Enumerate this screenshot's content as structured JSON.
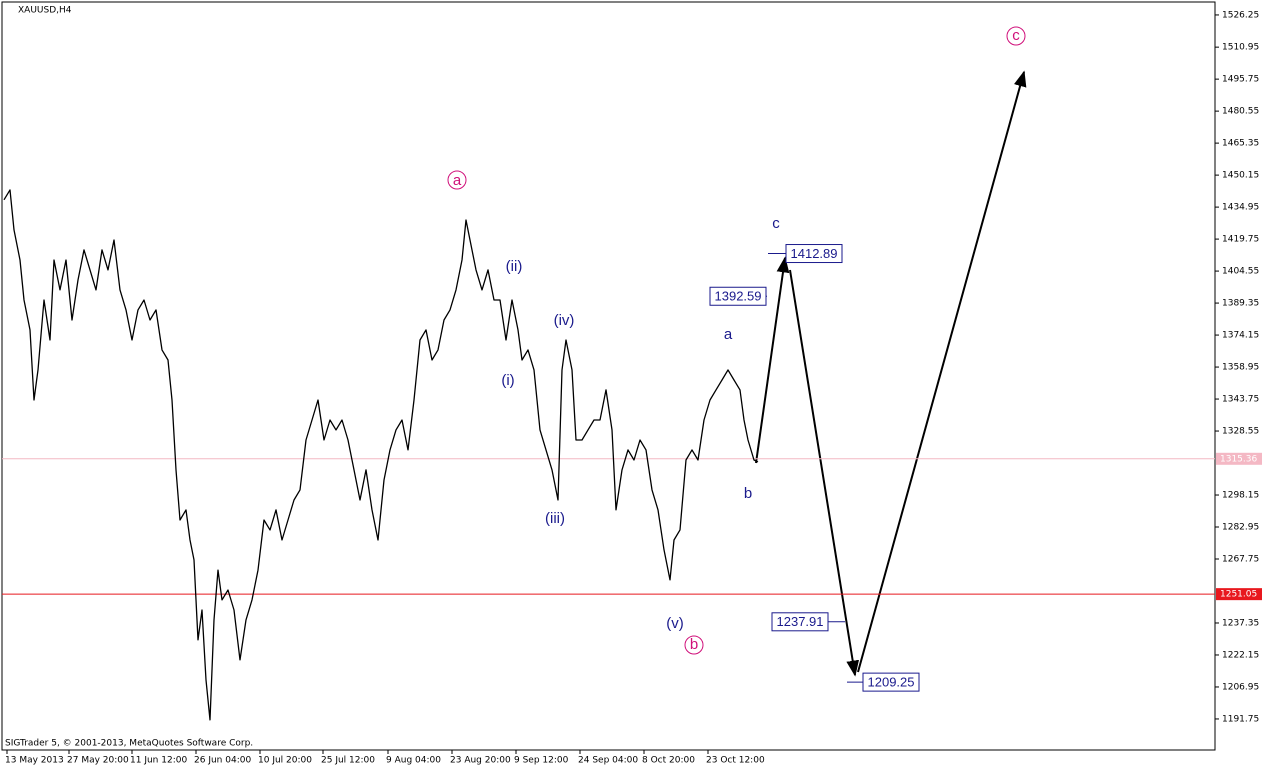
{
  "chart_data": {
    "type": "line",
    "title": "XAUUSD,H4",
    "footer": "SIGTrader 5, © 2001-2013, MetaQuotes Software Corp.",
    "xlim": [
      0,
      1213
    ],
    "ylim": [
      1177.0,
      1532.4
    ],
    "xticks": [
      {
        "value": 5,
        "label": "13 May 2013"
      },
      {
        "value": 67,
        "label": "27 May 20:00"
      },
      {
        "value": 130,
        "label": "11 Jun 12:00"
      },
      {
        "value": 194,
        "label": "26 Jun 04:00"
      },
      {
        "value": 258,
        "label": "10 Jul 20:00"
      },
      {
        "value": 321,
        "label": "25 Jul 12:00"
      },
      {
        "value": 386,
        "label": "9 Aug 04:00"
      },
      {
        "value": 450,
        "label": "23 Aug 20:00"
      },
      {
        "value": 514,
        "label": "9 Sep 12:00"
      },
      {
        "value": 578,
        "label": "24 Sep 04:00"
      },
      {
        "value": 642,
        "label": "8 Oct 20:00"
      },
      {
        "value": 706,
        "label": "23 Oct 12:00"
      }
    ],
    "yticks": [
      1526.25,
      1510.95,
      1495.75,
      1480.55,
      1465.35,
      1450.15,
      1434.95,
      1419.75,
      1404.55,
      1389.35,
      1374.15,
      1358.95,
      1343.75,
      1328.55,
      1298.15,
      1282.95,
      1267.75,
      1237.35,
      1222.15,
      1206.95,
      1191.75
    ],
    "hlines": [
      {
        "value": 1315.36,
        "color": "#f4b8c4"
      },
      {
        "value": 1251.05,
        "color": "#e8181e"
      }
    ],
    "x": [
      2,
      8,
      12,
      18,
      22,
      28,
      32,
      36,
      42,
      48,
      52,
      58,
      64,
      70,
      76,
      82,
      88,
      94,
      100,
      106,
      112,
      118,
      124,
      130,
      136,
      142,
      148,
      154,
      160,
      166,
      170,
      174,
      178,
      184,
      188,
      192,
      196,
      200,
      204,
      208,
      212,
      216,
      220,
      226,
      232,
      238,
      244,
      250,
      256,
      262,
      268,
      274,
      280,
      286,
      292,
      298,
      304,
      310,
      316,
      322,
      328,
      334,
      340,
      346,
      352,
      358,
      364,
      370,
      376,
      382,
      388,
      394,
      400,
      406,
      412,
      418,
      424,
      430,
      436,
      442,
      448,
      454,
      460,
      464,
      468,
      474,
      480,
      486,
      492,
      498,
      504,
      510,
      516,
      520,
      526,
      532,
      538,
      544,
      550,
      556,
      560,
      564,
      570,
      574,
      580,
      586,
      592,
      598,
      604,
      610,
      614,
      620,
      626,
      632,
      638,
      644,
      650,
      656,
      662,
      668,
      672,
      678,
      684,
      690,
      696,
      702,
      708,
      714,
      720,
      726,
      732,
      738,
      742,
      746,
      752,
      756
    ],
    "series": [
      {
        "name": "XAUUSD",
        "color": "#000000",
        "values": [
          1438.4,
          1443.1,
          1424.1,
          1409.8,
          1390.8,
          1376.6,
          1343.3,
          1357.6,
          1390.8,
          1371.8,
          1409.8,
          1395.6,
          1409.8,
          1381.3,
          1400.3,
          1414.6,
          1405.1,
          1395.6,
          1414.6,
          1405.1,
          1419.3,
          1395.6,
          1386.1,
          1371.8,
          1386.1,
          1390.8,
          1381.3,
          1386.1,
          1367.1,
          1362.3,
          1343.3,
          1310.1,
          1286.3,
          1291.1,
          1276.8,
          1267.3,
          1229.3,
          1243.5,
          1210.3,
          1191.3,
          1238.8,
          1262.5,
          1248.3,
          1253.0,
          1243.5,
          1219.8,
          1238.8,
          1248.3,
          1262.5,
          1286.3,
          1281.6,
          1291.1,
          1276.8,
          1286.3,
          1295.8,
          1300.6,
          1324.3,
          1333.8,
          1343.3,
          1324.3,
          1333.8,
          1329.1,
          1333.8,
          1324.3,
          1310.1,
          1295.8,
          1310.1,
          1291.1,
          1276.8,
          1305.3,
          1319.6,
          1329.1,
          1333.8,
          1319.6,
          1343.3,
          1371.8,
          1376.6,
          1362.3,
          1367.1,
          1381.3,
          1386.1,
          1395.6,
          1409.8,
          1428.8,
          1419.3,
          1405.1,
          1395.6,
          1405.1,
          1390.8,
          1390.8,
          1371.8,
          1390.8,
          1376.6,
          1362.3,
          1367.1,
          1357.6,
          1329.1,
          1319.6,
          1310.1,
          1295.8,
          1357.6,
          1371.8,
          1357.6,
          1324.3,
          1324.3,
          1329.1,
          1333.8,
          1333.8,
          1348.1,
          1329.1,
          1291.1,
          1310.1,
          1319.6,
          1314.8,
          1324.3,
          1319.6,
          1300.6,
          1291.1,
          1272.1,
          1257.8,
          1276.8,
          1281.6,
          1314.8,
          1319.6,
          1314.8,
          1333.8,
          1343.3,
          1348.1,
          1352.8,
          1357.6,
          1352.8,
          1348.1,
          1333.8,
          1324.3,
          1314.8,
          1313.9
        ]
      }
    ],
    "annotations": [
      "a",
      "(ii)",
      "(i)",
      "(iv)",
      "(iii)",
      "(v)",
      "b",
      "a",
      "b",
      "c",
      "c"
    ],
    "targets": [
      1412.89,
      1392.59,
      1237.91,
      1209.25
    ]
  }
}
